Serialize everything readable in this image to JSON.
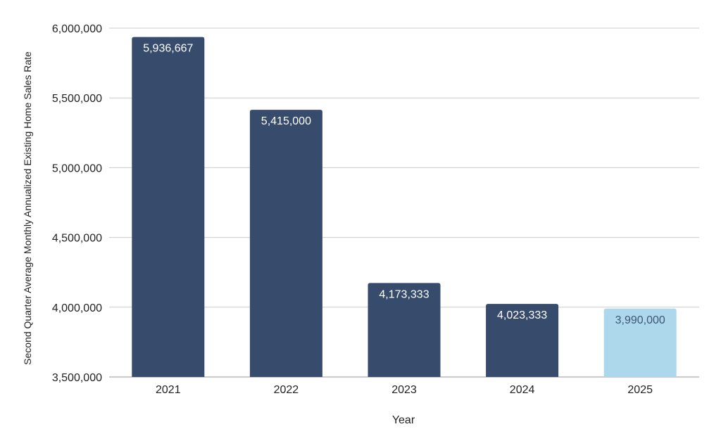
{
  "chart_data": {
    "type": "bar",
    "title": "",
    "xlabel": "Year",
    "ylabel": "Second  Quarter Average Monthly Annualized Existing Home Sales Rate",
    "categories": [
      "2021",
      "2022",
      "2023",
      "2024",
      "2025"
    ],
    "values": [
      5936667,
      5415000,
      4173333,
      4023333,
      3990000
    ],
    "data_labels": [
      "5,936,667",
      "5,415,000",
      "4,173,333",
      "4,023,333",
      "3,990,000"
    ],
    "bar_colors": [
      "#374b6c",
      "#374b6c",
      "#374b6c",
      "#374b6c",
      "#add8ec"
    ],
    "label_colors": [
      "#ffffff",
      "#ffffff",
      "#ffffff",
      "#ffffff",
      "#3f5574"
    ],
    "ylim": [
      3500000,
      6000000
    ],
    "yticks": [
      3500000,
      4000000,
      4500000,
      5000000,
      5500000,
      6000000
    ],
    "ytick_labels": [
      "3,500,000",
      "4,000,000",
      "4,500,000",
      "5,000,000",
      "5,500,000",
      "6,000,000"
    ],
    "grid": true,
    "gridline_color": "#cccccc"
  }
}
